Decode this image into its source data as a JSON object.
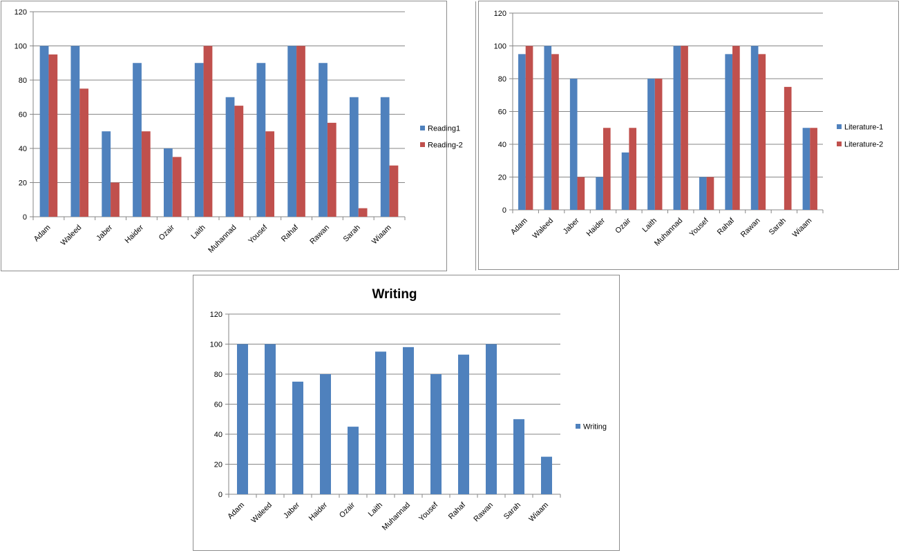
{
  "colors": {
    "series1": "#4f81bd",
    "series2": "#c0504d",
    "grid": "#868686"
  },
  "chart_data": [
    {
      "type": "bar",
      "title": "",
      "categories": [
        "Adam",
        "Waleed",
        "Jaber",
        "Haider",
        "Ozair",
        "Laith",
        "Muhannad",
        "Yousef",
        "Rahaf",
        "Rawan",
        "Sarah",
        "Wiaam"
      ],
      "series": [
        {
          "name": "Reading1",
          "values": [
            100,
            100,
            50,
            90,
            40,
            90,
            70,
            90,
            100,
            90,
            70,
            70
          ]
        },
        {
          "name": "Reading-2",
          "values": [
            95,
            75,
            20,
            50,
            35,
            100,
            65,
            50,
            100,
            55,
            5,
            30
          ]
        }
      ],
      "ylim": [
        0,
        120
      ],
      "yticks": [
        "0",
        "20",
        "40",
        "60",
        "80",
        "100",
        "120"
      ],
      "legend": "right",
      "grid": true
    },
    {
      "type": "bar",
      "title": "",
      "categories": [
        "Adam",
        "Waleed",
        "Jaber",
        "Haider",
        "Ozair",
        "Laith",
        "Muhannad",
        "Yousef",
        "Rahaf",
        "Rawan",
        "Sarah",
        "Wiaam"
      ],
      "series": [
        {
          "name": "Literature-1",
          "values": [
            95,
            100,
            80,
            20,
            35,
            80,
            100,
            20,
            95,
            100,
            0,
            50
          ]
        },
        {
          "name": "Literature-2",
          "values": [
            100,
            95,
            20,
            50,
            50,
            80,
            100,
            20,
            100,
            95,
            75,
            50
          ]
        }
      ],
      "ylim": [
        0,
        120
      ],
      "yticks": [
        "0",
        "20",
        "40",
        "60",
        "80",
        "100",
        "120"
      ],
      "legend": "right",
      "grid": true
    },
    {
      "type": "bar",
      "title": "Writing",
      "categories": [
        "Adam",
        "Waleed",
        "Jaber",
        "Haider",
        "Ozair",
        "Laith",
        "Muhannad",
        "Yousef",
        "Rahaf",
        "Rawan",
        "Sarah",
        "Wiaam"
      ],
      "series": [
        {
          "name": "Writing",
          "values": [
            100,
            100,
            75,
            80,
            45,
            95,
            98,
            80,
            93,
            100,
            50,
            25
          ]
        }
      ],
      "ylim": [
        0,
        120
      ],
      "yticks": [
        "0",
        "20",
        "40",
        "60",
        "80",
        "100",
        "120"
      ],
      "legend": "right",
      "grid": true
    }
  ]
}
